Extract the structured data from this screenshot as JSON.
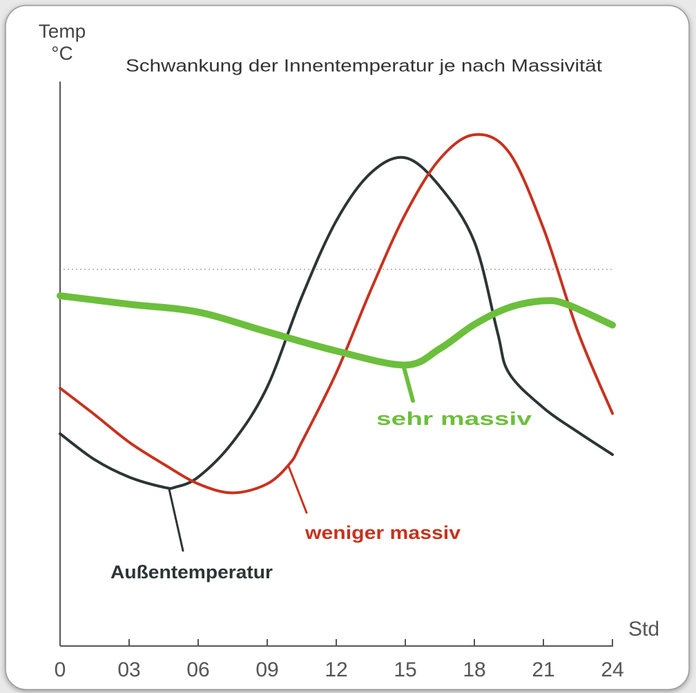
{
  "chart_data": {
    "type": "line",
    "title": "Schwankung der Innentemperatur je nach Massivität",
    "y_label": [
      "Temp",
      "°C"
    ],
    "x_label": "Std",
    "xlim": [
      0,
      24
    ],
    "xticks": [
      0,
      {
        "value": 3,
        "label": "03"
      },
      {
        "value": 6,
        "label": "06"
      },
      {
        "value": 9,
        "label": "09"
      },
      12,
      15,
      18,
      21,
      24
    ],
    "ylim": [
      0,
      100
    ],
    "reference_line": 66.9,
    "series": [
      {
        "name": "Außentemperatur",
        "color": "#2b3535",
        "x": [
          0,
          1.5,
          3,
          4.5,
          5,
          6,
          7.5,
          9,
          10.5,
          12,
          13.5,
          15,
          16.5,
          18,
          19,
          19.5,
          21,
          22.5,
          24
        ],
        "values": [
          37.7,
          33.1,
          30,
          28.2,
          28.2,
          30,
          36.2,
          46,
          62,
          75.5,
          84,
          86.7,
          81.6,
          71.8,
          55.8,
          48.5,
          42.3,
          38,
          34
        ]
      },
      {
        "name": "weniger massiv",
        "color": "#c8321e",
        "x": [
          0,
          1.5,
          3,
          4.5,
          6,
          7.5,
          9,
          10,
          10.5,
          12,
          13.5,
          15,
          16.5,
          18,
          19.5,
          21,
          22.5,
          24
        ],
        "values": [
          45.8,
          41.1,
          36.2,
          32.3,
          28.8,
          27.2,
          28.8,
          32.5,
          36.2,
          48.5,
          63.2,
          76.7,
          86.5,
          90.8,
          87.7,
          74.2,
          55.8,
          41.3
        ]
      },
      {
        "name": "sehr massiv",
        "color": "#6cbf3c",
        "x": [
          0,
          3,
          6,
          9,
          12,
          15,
          16.5,
          18,
          19.5,
          21,
          22,
          24
        ],
        "values": [
          62.2,
          60.7,
          59.3,
          55.8,
          52.4,
          49.9,
          52.8,
          57.1,
          60.1,
          61.3,
          60.7,
          57
        ]
      }
    ]
  }
}
